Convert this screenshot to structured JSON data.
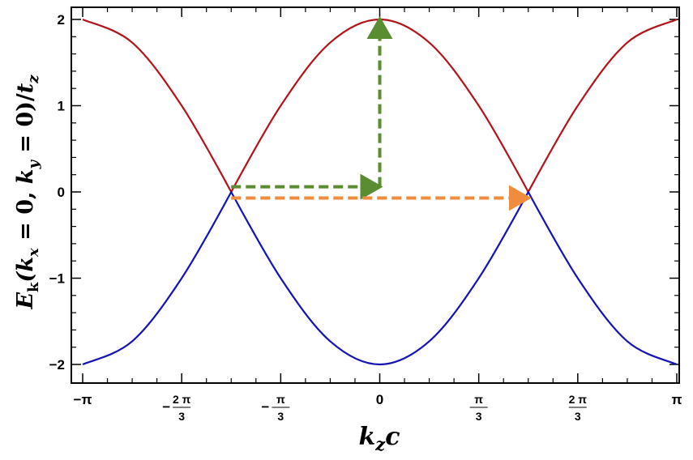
{
  "chart_data": {
    "type": "line",
    "xlabel": "k_z c",
    "ylabel": "E_k(k_x = 0, k_y = 0)/t_z",
    "x_range": [
      -3.14159,
      3.14159
    ],
    "ylim": [
      -2,
      2
    ],
    "grid": false,
    "x_ticks": [
      {
        "value": -3.14159,
        "label": "-π"
      },
      {
        "value": -2.0944,
        "label": "-2π/3"
      },
      {
        "value": -1.0472,
        "label": "-π/3"
      },
      {
        "value": 0,
        "label": "0"
      },
      {
        "value": 1.0472,
        "label": "π/3"
      },
      {
        "value": 2.0944,
        "label": "2π/3"
      },
      {
        "value": 3.14159,
        "label": "π"
      }
    ],
    "y_ticks": [
      {
        "value": -2,
        "label": "-2"
      },
      {
        "value": -1,
        "label": "-1"
      },
      {
        "value": 0,
        "label": "0"
      },
      {
        "value": 1,
        "label": "1"
      },
      {
        "value": 2,
        "label": "2"
      }
    ],
    "series": [
      {
        "color": "#b2141b",
        "x": [
          -3.14159,
          -2.61799,
          -2.0944,
          -1.5708,
          -1.0472,
          -0.5236,
          0,
          0.5236,
          1.0472,
          1.5708,
          2.0944,
          2.61799,
          3.14159
        ],
        "y": [
          2.0,
          1.732,
          1.0,
          0.0,
          1.0,
          1.732,
          2.0,
          1.732,
          1.0,
          0.0,
          1.0,
          1.732,
          2.0
        ]
      },
      {
        "color": "#1414b4",
        "x": [
          -3.14159,
          -2.61799,
          -2.0944,
          -1.5708,
          -1.0472,
          -0.5236,
          0,
          0.5236,
          1.0472,
          1.5708,
          2.0944,
          2.61799,
          3.14159
        ],
        "y": [
          -2.0,
          -1.732,
          -1.0,
          0.0,
          -1.0,
          -1.732,
          -2.0,
          -1.732,
          -1.0,
          0.0,
          -1.0,
          -1.732,
          -2.0
        ]
      }
    ],
    "annotations": [
      {
        "type": "dashed-arrow",
        "color": "#5a8c32",
        "from": [
          -1.5708,
          0.06
        ],
        "to": [
          0,
          0.06
        ]
      },
      {
        "type": "dashed-arrow",
        "color": "#5a8c32",
        "from": [
          0,
          0.06
        ],
        "to": [
          0,
          2.0
        ]
      },
      {
        "type": "dashed-arrow",
        "color": "#f08c3c",
        "from": [
          -1.5708,
          -0.07
        ],
        "to": [
          1.5708,
          -0.07
        ]
      }
    ]
  }
}
